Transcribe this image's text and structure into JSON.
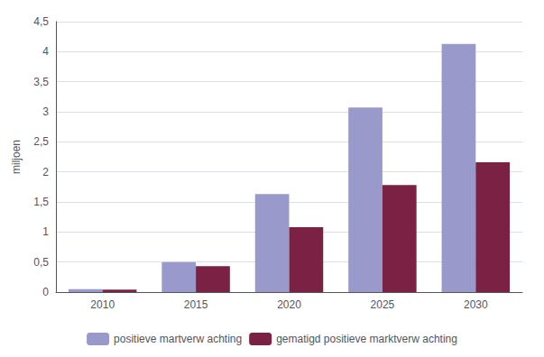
{
  "chart_data": {
    "type": "bar",
    "categories": [
      "2010",
      "2015",
      "2020",
      "2025",
      "2030"
    ],
    "series": [
      {
        "name": "positieve martverw achting",
        "color": "#9999cc",
        "values": [
          0.05,
          0.5,
          1.63,
          3.07,
          4.13
        ]
      },
      {
        "name": "gematigd positieve marktverw achting",
        "color": "#7b2244",
        "values": [
          0.04,
          0.43,
          1.08,
          1.78,
          2.16
        ]
      }
    ],
    "ylabel": "miljoen",
    "ylim": [
      0,
      4.5
    ],
    "yticks": [
      0,
      {
        "value": 0.5,
        "label": "0,5"
      },
      1,
      {
        "value": 1.5,
        "label": "1,5"
      },
      2,
      {
        "value": 2.5,
        "label": "2,5"
      },
      3,
      {
        "value": 3.5,
        "label": "3,5"
      },
      4,
      {
        "value": 4.5,
        "label": "4,5"
      }
    ],
    "grid": true,
    "legend": "bottom"
  }
}
